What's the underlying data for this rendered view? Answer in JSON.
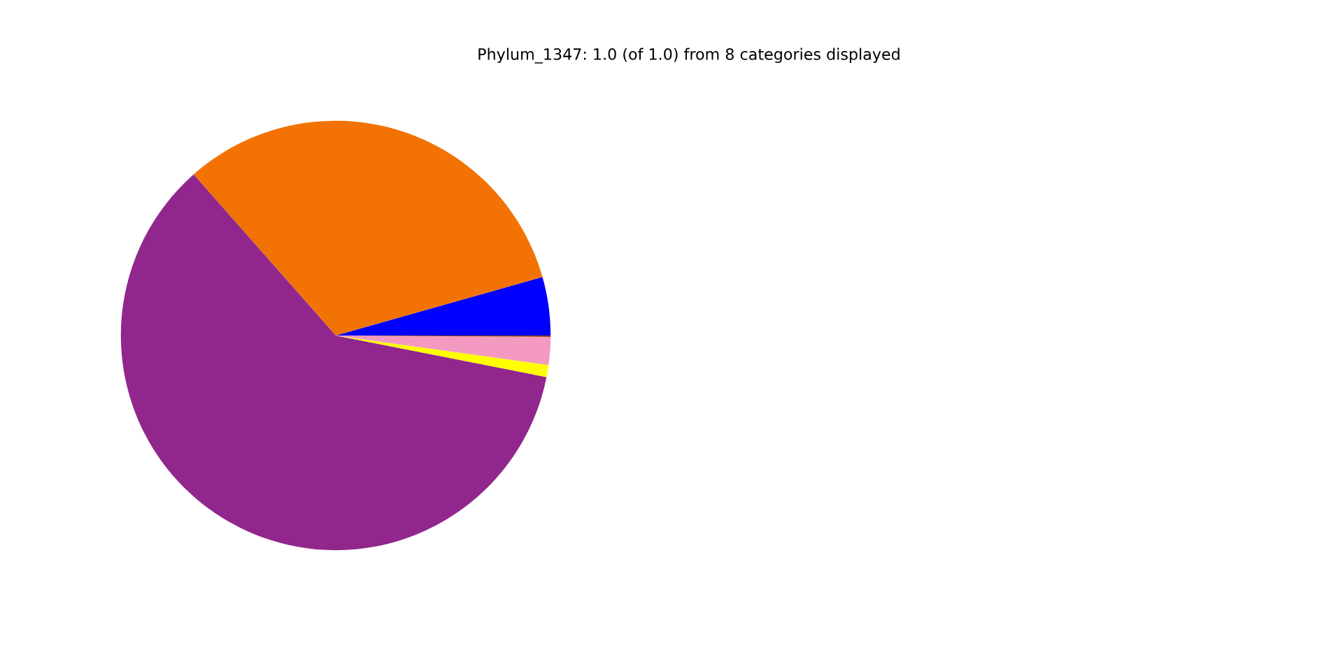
{
  "chart_data": {
    "type": "pie",
    "title": "Phylum_1347: 1.0 (of 1.0) from 8 categories displayed",
    "categories": [
      null,
      null,
      null,
      null,
      null,
      null
    ],
    "values": [
      4.4,
      32.1,
      60.4,
      0.9,
      2.1,
      0.1
    ],
    "colors": [
      "#0000ff",
      "#f27304",
      "#91278d",
      "#ffff00",
      "#f49ac1",
      "#8b4513"
    ]
  }
}
